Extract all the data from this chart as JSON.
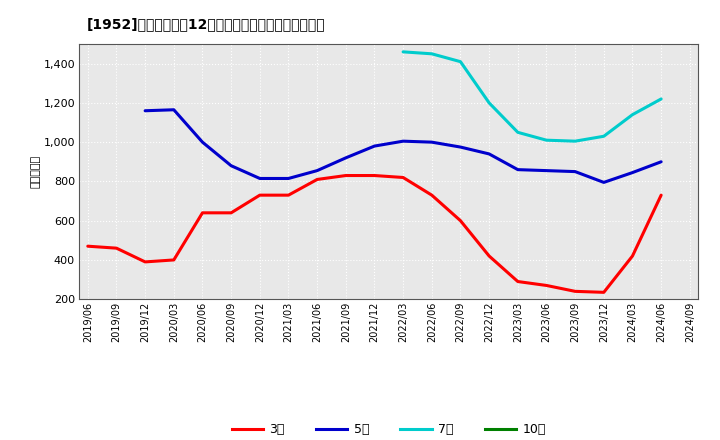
{
  "title": "[1952]　当期純利益12か月移動合計の標準偏差の推移",
  "ylabel": "（百万円）",
  "ylim": [
    200,
    1500
  ],
  "yticks": [
    200,
    400,
    600,
    800,
    1000,
    1200,
    1400
  ],
  "plot_bg_color": "#e8e8e8",
  "fig_bg_color": "#ffffff",
  "grid_color": "#ffffff",
  "series": {
    "3年": {
      "color": "#ff0000",
      "data": [
        [
          "2019/06",
          470
        ],
        [
          "2019/09",
          460
        ],
        [
          "2019/12",
          390
        ],
        [
          "2020/03",
          400
        ],
        [
          "2020/06",
          640
        ],
        [
          "2020/09",
          640
        ],
        [
          "2020/12",
          730
        ],
        [
          "2021/03",
          730
        ],
        [
          "2021/06",
          810
        ],
        [
          "2021/09",
          830
        ],
        [
          "2021/12",
          830
        ],
        [
          "2022/03",
          820
        ],
        [
          "2022/06",
          730
        ],
        [
          "2022/09",
          600
        ],
        [
          "2022/12",
          420
        ],
        [
          "2023/03",
          290
        ],
        [
          "2023/06",
          270
        ],
        [
          "2023/09",
          240
        ],
        [
          "2023/12",
          235
        ],
        [
          "2024/03",
          420
        ],
        [
          "2024/06",
          730
        ]
      ]
    },
    "5年": {
      "color": "#0000cc",
      "data": [
        [
          "2019/12",
          1160
        ],
        [
          "2020/03",
          1165
        ],
        [
          "2020/06",
          1000
        ],
        [
          "2020/09",
          880
        ],
        [
          "2020/12",
          815
        ],
        [
          "2021/03",
          815
        ],
        [
          "2021/06",
          855
        ],
        [
          "2021/09",
          920
        ],
        [
          "2021/12",
          980
        ],
        [
          "2022/03",
          1005
        ],
        [
          "2022/06",
          1000
        ],
        [
          "2022/09",
          975
        ],
        [
          "2022/12",
          940
        ],
        [
          "2023/03",
          860
        ],
        [
          "2023/06",
          855
        ],
        [
          "2023/09",
          850
        ],
        [
          "2023/12",
          795
        ],
        [
          "2024/03",
          845
        ],
        [
          "2024/06",
          900
        ]
      ]
    },
    "7年": {
      "color": "#00cccc",
      "data": [
        [
          "2022/03",
          1460
        ],
        [
          "2022/06",
          1450
        ],
        [
          "2022/09",
          1410
        ],
        [
          "2022/12",
          1200
        ],
        [
          "2023/03",
          1050
        ],
        [
          "2023/06",
          1010
        ],
        [
          "2023/09",
          1005
        ],
        [
          "2023/12",
          1030
        ],
        [
          "2024/03",
          1140
        ],
        [
          "2024/06",
          1220
        ]
      ]
    },
    "10年": {
      "color": "#008000",
      "data": []
    }
  },
  "xtick_labels": [
    "2019/06",
    "2019/09",
    "2019/12",
    "2020/03",
    "2020/06",
    "2020/09",
    "2020/12",
    "2021/03",
    "2021/06",
    "2021/09",
    "2021/12",
    "2022/03",
    "2022/06",
    "2022/09",
    "2022/12",
    "2023/03",
    "2023/06",
    "2023/09",
    "2023/12",
    "2024/03",
    "2024/06",
    "2024/09"
  ],
  "legend_labels": [
    "3年",
    "5年",
    "7年",
    "10年"
  ],
  "legend_colors": [
    "#ff0000",
    "#0000cc",
    "#00cccc",
    "#008000"
  ],
  "linewidth": 2.2
}
